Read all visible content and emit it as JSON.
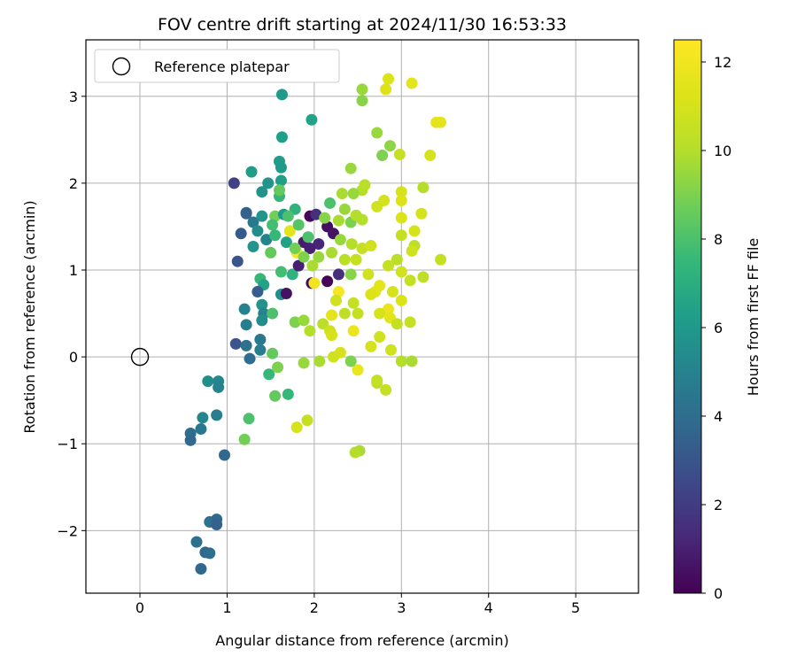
{
  "chart_data": {
    "type": "scatter",
    "title": "FOV centre drift starting at 2024/11/30 16:53:33",
    "xlabel": "Angular distance from reference (arcmin)",
    "ylabel": "Rotation from reference (arcmin)",
    "xlim": [
      -0.62,
      5.72
    ],
    "ylim": [
      -2.72,
      3.65
    ],
    "xticks": [
      0,
      1,
      2,
      3,
      4,
      5
    ],
    "yticks": [
      -2,
      -1,
      0,
      1,
      2,
      3
    ],
    "grid": true,
    "legend": {
      "position": "top-left",
      "entries": [
        "Reference platepar"
      ]
    },
    "reference_point": {
      "x": 0,
      "y": 0,
      "label": "Reference platepar"
    },
    "colorbar": {
      "label": "Hours from first FF file",
      "min": 0,
      "max": 12.5,
      "ticks": [
        0,
        2,
        4,
        6,
        8,
        10,
        12
      ],
      "colormap": "viridis"
    },
    "series": [
      {
        "name": "FOV centre drift",
        "points": [
          {
            "x": 1.63,
            "y": 3.02,
            "c": 6.0
          },
          {
            "x": 1.63,
            "y": 2.53,
            "c": 6.3
          },
          {
            "x": 1.97,
            "y": 2.73,
            "c": 6.5
          },
          {
            "x": 1.6,
            "y": 2.25,
            "c": 6.2
          },
          {
            "x": 1.62,
            "y": 2.18,
            "c": 6.1
          },
          {
            "x": 1.62,
            "y": 2.03,
            "c": 6.3
          },
          {
            "x": 1.28,
            "y": 2.13,
            "c": 6.2
          },
          {
            "x": 1.08,
            "y": 2.0,
            "c": 2.2
          },
          {
            "x": 1.47,
            "y": 2.0,
            "c": 5.8
          },
          {
            "x": 1.4,
            "y": 1.9,
            "c": 5.7
          },
          {
            "x": 1.6,
            "y": 1.85,
            "c": 7.5
          },
          {
            "x": 1.22,
            "y": 1.66,
            "c": 3.8
          },
          {
            "x": 1.22,
            "y": 1.65,
            "c": 3.5
          },
          {
            "x": 1.3,
            "y": 1.55,
            "c": 4.5
          },
          {
            "x": 1.4,
            "y": 1.62,
            "c": 5.8
          },
          {
            "x": 1.55,
            "y": 1.62,
            "c": 8.8
          },
          {
            "x": 1.65,
            "y": 1.64,
            "c": 6.0
          },
          {
            "x": 1.78,
            "y": 1.7,
            "c": 7.2
          },
          {
            "x": 1.16,
            "y": 1.42,
            "c": 3.2
          },
          {
            "x": 1.35,
            "y": 1.45,
            "c": 5.5
          },
          {
            "x": 1.45,
            "y": 1.35,
            "c": 5.0
          },
          {
            "x": 1.3,
            "y": 1.27,
            "c": 5.8
          },
          {
            "x": 1.5,
            "y": 1.2,
            "c": 8.5
          },
          {
            "x": 1.68,
            "y": 1.32,
            "c": 6.5
          },
          {
            "x": 1.12,
            "y": 1.1,
            "c": 3.0
          },
          {
            "x": 1.62,
            "y": 0.98,
            "c": 7.8
          },
          {
            "x": 1.75,
            "y": 0.95,
            "c": 7.2
          },
          {
            "x": 1.38,
            "y": 0.9,
            "c": 7.5
          },
          {
            "x": 1.42,
            "y": 0.83,
            "c": 6.5
          },
          {
            "x": 1.35,
            "y": 0.75,
            "c": 3.3
          },
          {
            "x": 1.62,
            "y": 0.72,
            "c": 5.5
          },
          {
            "x": 1.4,
            "y": 0.6,
            "c": 5.7
          },
          {
            "x": 1.42,
            "y": 0.5,
            "c": 5.0
          },
          {
            "x": 1.4,
            "y": 0.42,
            "c": 5.5
          },
          {
            "x": 1.52,
            "y": 0.5,
            "c": 8.0
          },
          {
            "x": 1.2,
            "y": 0.55,
            "c": 5.0
          },
          {
            "x": 1.22,
            "y": 0.37,
            "c": 4.8
          },
          {
            "x": 1.38,
            "y": 0.2,
            "c": 4.5
          },
          {
            "x": 1.1,
            "y": 0.15,
            "c": 3.0
          },
          {
            "x": 1.22,
            "y": 0.13,
            "c": 4.2
          },
          {
            "x": 1.38,
            "y": 0.08,
            "c": 4.8
          },
          {
            "x": 1.52,
            "y": 0.04,
            "c": 8.5
          },
          {
            "x": 1.26,
            "y": -0.02,
            "c": 4.0
          },
          {
            "x": 1.48,
            "y": -0.2,
            "c": 7.5
          },
          {
            "x": 1.58,
            "y": -0.12,
            "c": 9.0
          },
          {
            "x": 1.55,
            "y": -0.45,
            "c": 8.5
          },
          {
            "x": 1.7,
            "y": -0.43,
            "c": 7.5
          },
          {
            "x": 1.25,
            "y": -0.71,
            "c": 8.0
          },
          {
            "x": 1.2,
            "y": -0.95,
            "c": 8.8
          },
          {
            "x": 0.78,
            "y": -0.28,
            "c": 5.5
          },
          {
            "x": 0.9,
            "y": -0.28,
            "c": 5.2
          },
          {
            "x": 0.9,
            "y": -0.35,
            "c": 5.0
          },
          {
            "x": 0.72,
            "y": -0.7,
            "c": 5.2
          },
          {
            "x": 0.88,
            "y": -0.67,
            "c": 4.8
          },
          {
            "x": 0.7,
            "y": -0.83,
            "c": 4.5
          },
          {
            "x": 0.58,
            "y": -0.88,
            "c": 4.0
          },
          {
            "x": 0.58,
            "y": -0.96,
            "c": 3.8
          },
          {
            "x": 0.97,
            "y": -1.13,
            "c": 3.8
          },
          {
            "x": 0.8,
            "y": -1.9,
            "c": 4.3
          },
          {
            "x": 0.88,
            "y": -1.87,
            "c": 3.8
          },
          {
            "x": 0.88,
            "y": -1.93,
            "c": 3.5
          },
          {
            "x": 0.65,
            "y": -2.13,
            "c": 4.2
          },
          {
            "x": 0.75,
            "y": -2.25,
            "c": 3.8
          },
          {
            "x": 0.8,
            "y": -2.26,
            "c": 4.0
          },
          {
            "x": 0.7,
            "y": -2.44,
            "c": 3.8
          },
          {
            "x": 1.95,
            "y": 1.62,
            "c": 0.2
          },
          {
            "x": 2.02,
            "y": 1.64,
            "c": 1.5
          },
          {
            "x": 2.15,
            "y": 1.5,
            "c": 0.4
          },
          {
            "x": 2.22,
            "y": 1.42,
            "c": 0.6
          },
          {
            "x": 2.05,
            "y": 1.3,
            "c": 1.2
          },
          {
            "x": 1.88,
            "y": 1.32,
            "c": 0.8
          },
          {
            "x": 1.95,
            "y": 1.25,
            "c": 1.0
          },
          {
            "x": 1.82,
            "y": 1.05,
            "c": 1.0
          },
          {
            "x": 2.28,
            "y": 0.95,
            "c": 1.5
          },
          {
            "x": 1.97,
            "y": 0.85,
            "c": 0.3
          },
          {
            "x": 1.68,
            "y": 0.73,
            "c": 0.5
          },
          {
            "x": 2.15,
            "y": 0.87,
            "c": 0.1
          },
          {
            "x": 1.72,
            "y": 1.45,
            "c": 11.5
          },
          {
            "x": 1.8,
            "y": 1.2,
            "c": 12.3
          },
          {
            "x": 2.0,
            "y": 0.85,
            "c": 12.0
          },
          {
            "x": 2.28,
            "y": 0.75,
            "c": 12.2
          },
          {
            "x": 2.2,
            "y": 0.48,
            "c": 11.5
          },
          {
            "x": 2.45,
            "y": 0.3,
            "c": 11.8
          },
          {
            "x": 2.3,
            "y": 0.05,
            "c": 11.0
          },
          {
            "x": 2.5,
            "y": -0.15,
            "c": 11.8
          },
          {
            "x": 2.7,
            "y": 0.75,
            "c": 11.5
          },
          {
            "x": 2.85,
            "y": 0.55,
            "c": 11.8
          },
          {
            "x": 3.0,
            "y": 0.65,
            "c": 11.2
          },
          {
            "x": 2.55,
            "y": 3.08,
            "c": 9.5
          },
          {
            "x": 2.55,
            "y": 2.95,
            "c": 9.2
          },
          {
            "x": 2.85,
            "y": 3.2,
            "c": 11.2
          },
          {
            "x": 2.82,
            "y": 3.08,
            "c": 11.3
          },
          {
            "x": 3.12,
            "y": 3.15,
            "c": 11.5
          },
          {
            "x": 2.72,
            "y": 2.58,
            "c": 9.5
          },
          {
            "x": 2.87,
            "y": 2.43,
            "c": 9.3
          },
          {
            "x": 2.78,
            "y": 2.32,
            "c": 9.0
          },
          {
            "x": 2.98,
            "y": 2.33,
            "c": 10.5
          },
          {
            "x": 3.33,
            "y": 2.32,
            "c": 11.0
          },
          {
            "x": 3.4,
            "y": 2.7,
            "c": 11.6
          },
          {
            "x": 3.45,
            "y": 2.7,
            "c": 11.5
          },
          {
            "x": 2.42,
            "y": 2.17,
            "c": 9.5
          },
          {
            "x": 2.55,
            "y": 1.92,
            "c": 10.0
          },
          {
            "x": 2.58,
            "y": 1.98,
            "c": 10.2
          },
          {
            "x": 2.32,
            "y": 1.88,
            "c": 9.8
          },
          {
            "x": 2.45,
            "y": 1.88,
            "c": 9.5
          },
          {
            "x": 3.0,
            "y": 1.9,
            "c": 11.0
          },
          {
            "x": 3.0,
            "y": 1.8,
            "c": 11.3
          },
          {
            "x": 2.8,
            "y": 1.8,
            "c": 11.0
          },
          {
            "x": 2.72,
            "y": 1.73,
            "c": 10.8
          },
          {
            "x": 3.25,
            "y": 1.95,
            "c": 10.0
          },
          {
            "x": 3.0,
            "y": 1.6,
            "c": 11.2
          },
          {
            "x": 3.23,
            "y": 1.65,
            "c": 11.0
          },
          {
            "x": 3.15,
            "y": 1.45,
            "c": 11.0
          },
          {
            "x": 3.0,
            "y": 1.4,
            "c": 10.5
          },
          {
            "x": 3.15,
            "y": 1.28,
            "c": 10.3
          },
          {
            "x": 3.12,
            "y": 1.22,
            "c": 10.8
          },
          {
            "x": 3.45,
            "y": 1.12,
            "c": 10.5
          },
          {
            "x": 2.95,
            "y": 1.12,
            "c": 10.2
          },
          {
            "x": 2.85,
            "y": 1.05,
            "c": 10.5
          },
          {
            "x": 3.0,
            "y": 0.98,
            "c": 10.8
          },
          {
            "x": 3.1,
            "y": 0.88,
            "c": 10.5
          },
          {
            "x": 3.25,
            "y": 0.92,
            "c": 10.3
          },
          {
            "x": 2.62,
            "y": 0.95,
            "c": 10.8
          },
          {
            "x": 2.75,
            "y": 0.82,
            "c": 11.5
          },
          {
            "x": 2.9,
            "y": 0.75,
            "c": 11.0
          },
          {
            "x": 2.65,
            "y": 0.72,
            "c": 11.3
          },
          {
            "x": 2.75,
            "y": 0.5,
            "c": 11.0
          },
          {
            "x": 2.87,
            "y": 0.45,
            "c": 11.5
          },
          {
            "x": 2.95,
            "y": 0.38,
            "c": 10.5
          },
          {
            "x": 3.1,
            "y": 0.4,
            "c": 10.5
          },
          {
            "x": 2.75,
            "y": 0.23,
            "c": 10.8
          },
          {
            "x": 2.65,
            "y": 0.12,
            "c": 11.0
          },
          {
            "x": 2.88,
            "y": 0.08,
            "c": 10.8
          },
          {
            "x": 3.0,
            "y": -0.05,
            "c": 10.0
          },
          {
            "x": 3.12,
            "y": -0.05,
            "c": 9.8
          },
          {
            "x": 2.72,
            "y": -0.3,
            "c": 10.2
          },
          {
            "x": 2.72,
            "y": -0.27,
            "c": 10.5
          },
          {
            "x": 2.82,
            "y": -0.38,
            "c": 10.5
          },
          {
            "x": 2.52,
            "y": -1.08,
            "c": 9.8
          },
          {
            "x": 2.47,
            "y": -1.1,
            "c": 10.0
          },
          {
            "x": 2.35,
            "y": 1.7,
            "c": 9.5
          },
          {
            "x": 2.42,
            "y": 1.55,
            "c": 9.0
          },
          {
            "x": 2.55,
            "y": 1.58,
            "c": 10.0
          },
          {
            "x": 2.3,
            "y": 1.35,
            "c": 9.5
          },
          {
            "x": 2.43,
            "y": 1.3,
            "c": 10.0
          },
          {
            "x": 2.55,
            "y": 1.25,
            "c": 10.5
          },
          {
            "x": 2.65,
            "y": 1.28,
            "c": 10.8
          },
          {
            "x": 2.35,
            "y": 1.12,
            "c": 10.2
          },
          {
            "x": 2.48,
            "y": 1.12,
            "c": 10.5
          },
          {
            "x": 2.2,
            "y": 1.2,
            "c": 9.8
          },
          {
            "x": 2.05,
            "y": 1.15,
            "c": 9.5
          },
          {
            "x": 1.98,
            "y": 1.05,
            "c": 9.8
          },
          {
            "x": 2.42,
            "y": 0.95,
            "c": 9.2
          },
          {
            "x": 2.45,
            "y": 0.62,
            "c": 10.5
          },
          {
            "x": 2.25,
            "y": 0.65,
            "c": 10.8
          },
          {
            "x": 2.35,
            "y": 0.5,
            "c": 10.3
          },
          {
            "x": 2.5,
            "y": 0.5,
            "c": 10.5
          },
          {
            "x": 2.1,
            "y": 0.38,
            "c": 10.2
          },
          {
            "x": 2.18,
            "y": 0.3,
            "c": 10.8
          },
          {
            "x": 2.2,
            "y": 0.25,
            "c": 11.0
          },
          {
            "x": 1.95,
            "y": 0.3,
            "c": 10.0
          },
          {
            "x": 1.78,
            "y": 0.4,
            "c": 9.0
          },
          {
            "x": 1.88,
            "y": 0.42,
            "c": 9.5
          },
          {
            "x": 2.22,
            "y": 0.0,
            "c": 10.8
          },
          {
            "x": 2.06,
            "y": -0.05,
            "c": 9.8
          },
          {
            "x": 2.42,
            "y": -0.05,
            "c": 9.0
          },
          {
            "x": 1.92,
            "y": -0.73,
            "c": 10.5
          },
          {
            "x": 1.8,
            "y": -0.81,
            "c": 11.0
          },
          {
            "x": 1.88,
            "y": -0.07,
            "c": 9.5
          },
          {
            "x": 1.6,
            "y": 1.92,
            "c": 8.5
          },
          {
            "x": 1.7,
            "y": 1.62,
            "c": 8.0
          },
          {
            "x": 1.52,
            "y": 1.52,
            "c": 7.8
          },
          {
            "x": 1.82,
            "y": 1.52,
            "c": 8.2
          },
          {
            "x": 1.93,
            "y": 1.38,
            "c": 8.0
          },
          {
            "x": 1.55,
            "y": 1.4,
            "c": 7.5
          },
          {
            "x": 1.78,
            "y": 1.25,
            "c": 8.8
          },
          {
            "x": 1.88,
            "y": 1.15,
            "c": 9.0
          },
          {
            "x": 2.12,
            "y": 1.6,
            "c": 9.2
          },
          {
            "x": 2.18,
            "y": 1.77,
            "c": 8.0
          },
          {
            "x": 2.28,
            "y": 1.57,
            "c": 9.8
          },
          {
            "x": 2.48,
            "y": 1.63,
            "c": 10.0
          }
        ]
      }
    ]
  }
}
